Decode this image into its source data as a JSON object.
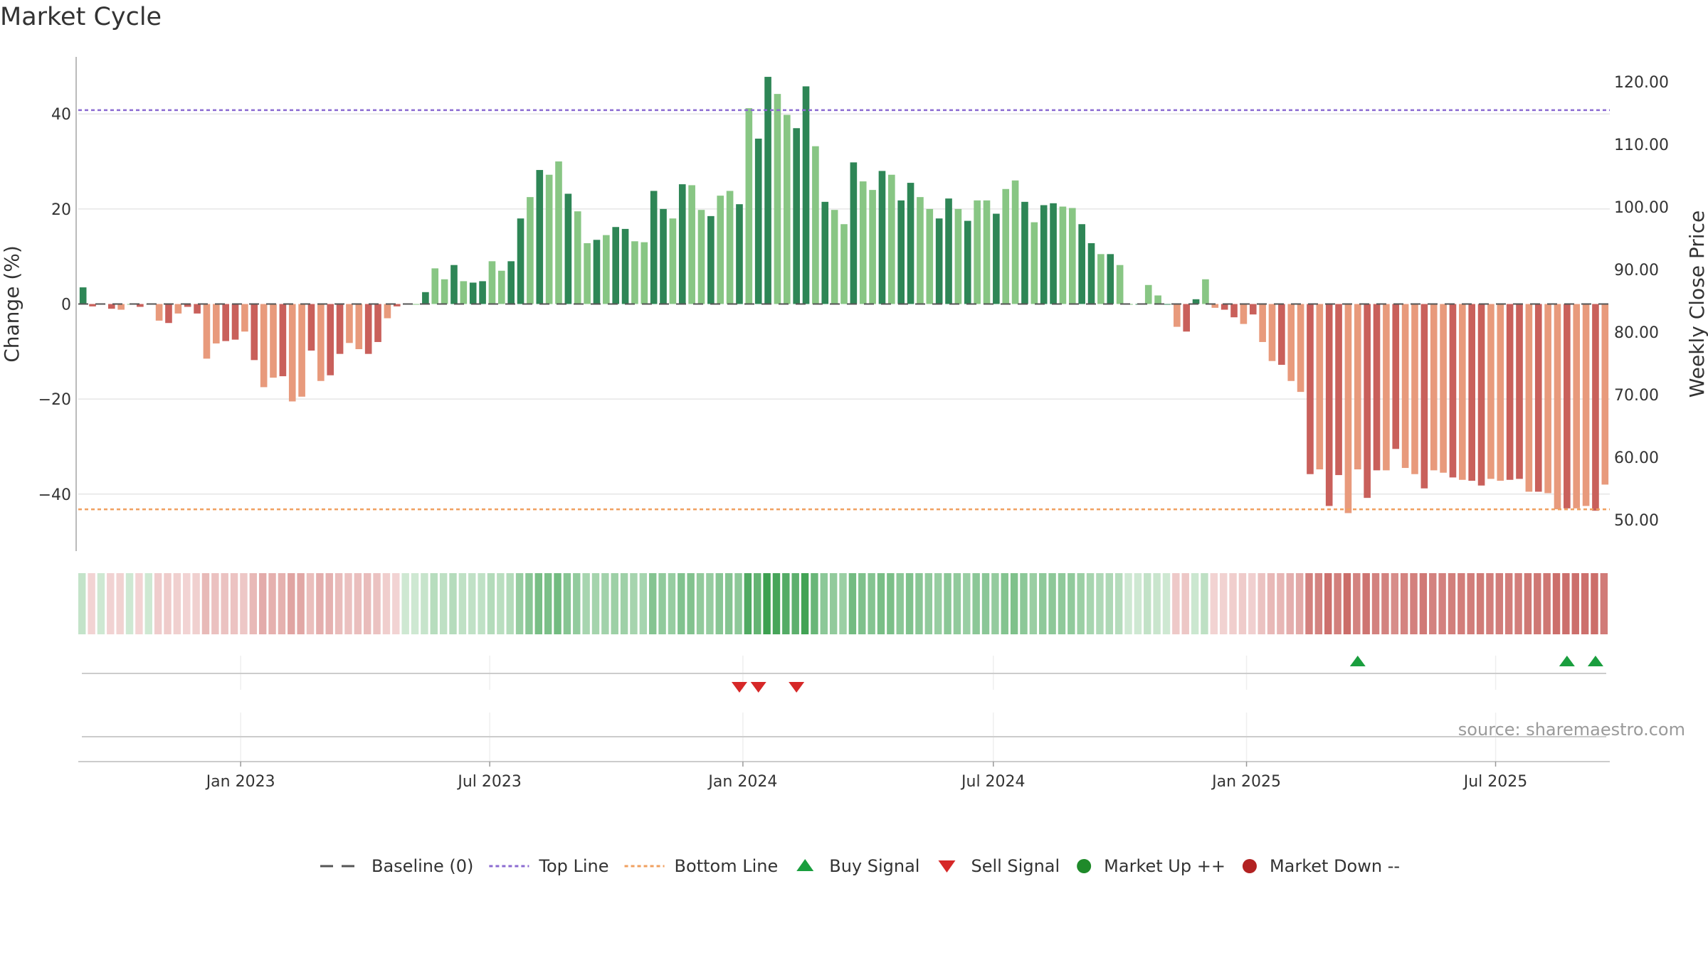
{
  "chart_data": {
    "type": "bar",
    "title": "Market Cycle",
    "ylabel": "Change (%)",
    "y2label": "Weekly Close Price",
    "ylim": [
      -52,
      52
    ],
    "y2lim": [
      45,
      124
    ],
    "yticks": [
      40,
      20,
      0,
      -20,
      -40
    ],
    "y2ticks": [
      "120.00",
      "110.00",
      "100.00",
      "90.00",
      "80.00",
      "70.00",
      "60.00",
      "50.00"
    ],
    "top_line": 40.8,
    "bottom_line": -43.2,
    "x_start": "2022-09-05",
    "x_end": "2025-09-22",
    "xticks": [
      {
        "date": "2023-01-01",
        "label": "Jan 2023"
      },
      {
        "date": "2023-07-01",
        "label": "Jul 2023"
      },
      {
        "date": "2024-01-01",
        "label": "Jan 2024"
      },
      {
        "date": "2024-07-01",
        "label": "Jul 2024"
      },
      {
        "date": "2025-01-01",
        "label": "Jan 2025"
      },
      {
        "date": "2025-07-01",
        "label": "Jul 2025"
      }
    ],
    "series": [
      {
        "values": [
          3.5,
          -0.5,
          0,
          -1,
          -1.2,
          0,
          -0.6,
          0,
          -3.5,
          -4,
          -2,
          -0.6,
          -2,
          -11.5,
          -8.3,
          -7.8,
          -7.5,
          -5.8,
          -11.8,
          -17.5,
          -15.5,
          -15.2,
          -20.5,
          -19.5,
          -9.8,
          -16.2,
          -15,
          -10.5,
          -8.2,
          -9.5,
          -10.5,
          -8,
          -3,
          -0.5,
          0,
          0,
          2.5,
          7.5,
          5.2,
          8.2,
          4.8,
          4.5,
          4.8,
          9,
          7,
          9,
          18,
          22.5,
          28.2,
          27.2,
          30,
          23.2,
          19.5,
          12.8,
          13.5,
          14.5,
          16.2,
          15.8,
          13.2,
          13,
          23.8,
          20,
          18,
          25.2,
          25,
          19.8,
          18.5,
          22.8,
          23.8,
          21,
          41.2,
          34.8,
          47.8,
          44.2,
          39.8,
          37,
          45.8,
          33.2,
          21.5,
          19.8,
          16.8,
          29.8,
          25.8,
          24,
          28,
          27.2,
          21.8,
          25.5,
          22.5,
          20,
          18,
          22.2,
          20,
          17.5,
          21.8,
          21.8,
          19,
          24.2,
          26,
          21.5,
          17.2,
          20.8,
          21.2,
          20.5,
          20.2,
          16.8,
          12.8,
          10.5,
          10.5,
          8.2,
          0,
          0,
          4,
          1.8,
          0,
          -4.8,
          -5.8,
          1,
          5.2,
          -0.8,
          -1.2,
          -2.8,
          -4.2,
          -2.2,
          -8,
          -12,
          -12.8,
          -16.2,
          -18.5,
          -35.8,
          -34.8,
          -42.5,
          -36,
          -44,
          -34.8,
          -40.8,
          -35,
          -35,
          -30.5,
          -34.5,
          -35.8,
          -38.8,
          -35,
          -35.5,
          -36.5,
          -37,
          -37.2,
          -38.2,
          -36.8,
          -37.2,
          -37,
          -36.8,
          -39.5,
          -39.5,
          -39.8,
          -43.2,
          -43,
          -43,
          -42.5,
          -43.5,
          -38
        ]
      }
    ],
    "buy_signals": [
      134,
      156,
      159
    ],
    "sell_signals": [
      69,
      71,
      75
    ],
    "colors": {
      "positive_strong": "#2e8656",
      "positive_light": "#88c684",
      "negative_strong": "#c9605b",
      "negative_light": "#e89a7c",
      "top_line": "#8b6bd1",
      "bottom_line": "#f0a060",
      "buy": "#1a9e3e",
      "sell": "#d62828",
      "market_up": "#1f8a2a",
      "market_down": "#b22222",
      "baseline": "#555555"
    },
    "source": "source: sharemaestro.com",
    "legend": [
      {
        "label": "Baseline (0)",
        "marker": "dash-line"
      },
      {
        "label": "Top Line",
        "marker": "dotted-purple"
      },
      {
        "label": "Bottom Line",
        "marker": "dotted-orange"
      },
      {
        "label": "Buy Signal",
        "marker": "triangle-up"
      },
      {
        "label": "Sell Signal",
        "marker": "triangle-down"
      },
      {
        "label": "Market Up ++",
        "marker": "circle-green"
      },
      {
        "label": "Market Down --",
        "marker": "circle-red"
      }
    ]
  }
}
